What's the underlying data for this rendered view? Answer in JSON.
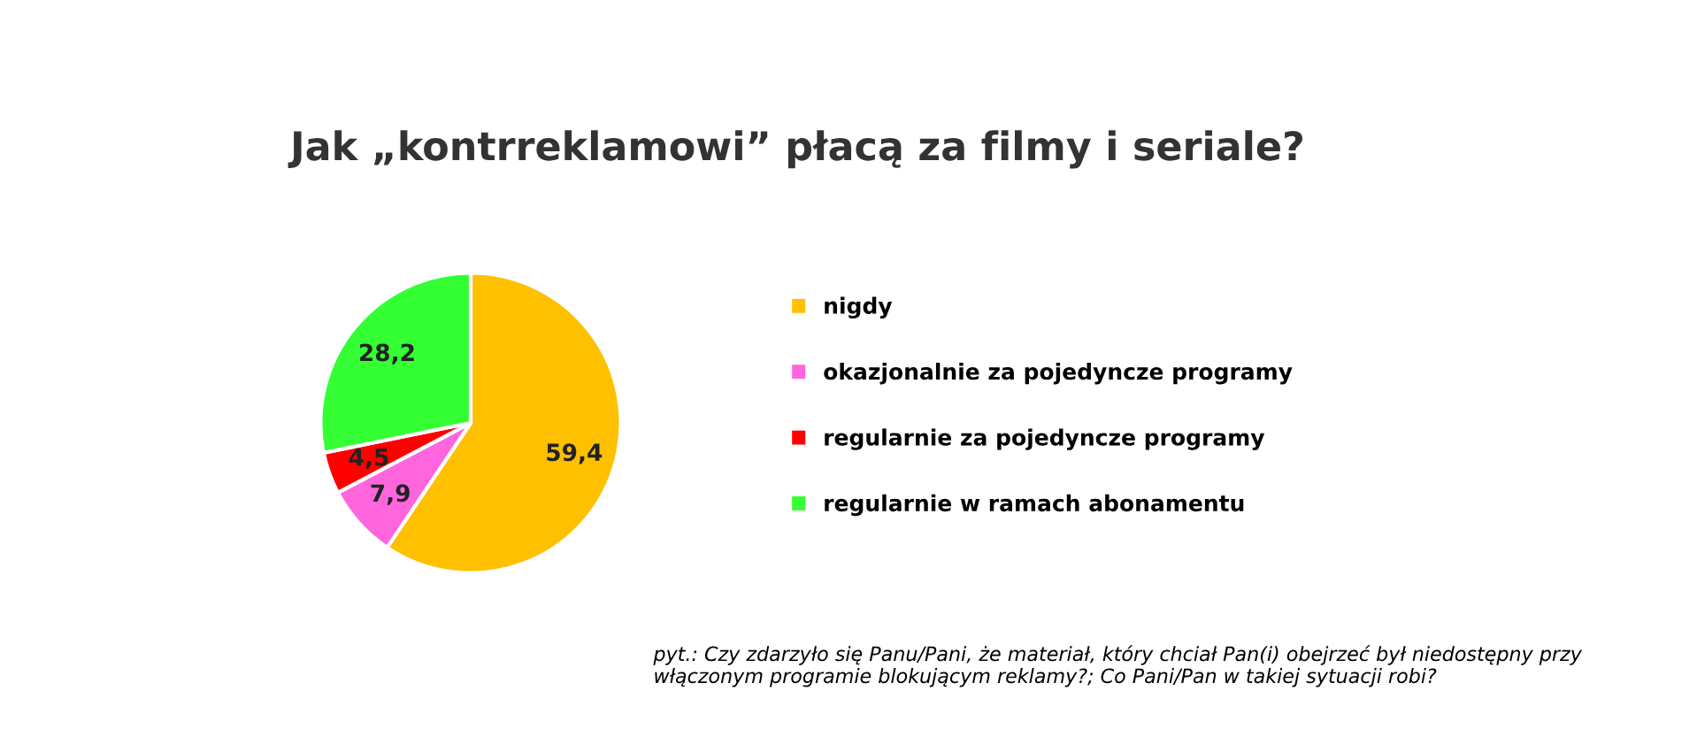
{
  "chart_data": {
    "type": "pie",
    "title": "Jak „kontrreklamowi” płacą za filmy i seriale?",
    "categories": [
      "nigdy",
      "okazjonalnie za pojedyncze programy",
      "regularnie za pojedyncze programy",
      "regularnie w ramach abonamentu"
    ],
    "values": [
      59.4,
      7.9,
      4.5,
      28.2
    ],
    "colors": [
      "#ffc000",
      "#ff66dd",
      "#ff0000",
      "#33ff33"
    ],
    "value_labels": [
      "59,4",
      "7,9",
      "4,5",
      "28,2"
    ],
    "legend": "right",
    "annotations": [
      "pyt.: Czy zdarzyło się Panu/Pani, że materiał, który chciał Pan(i) obejrzeć był niedostępny przy włączonym programie blokującym reklamy?; Co Pani/Pan w takiej sytuacji robi?"
    ]
  }
}
